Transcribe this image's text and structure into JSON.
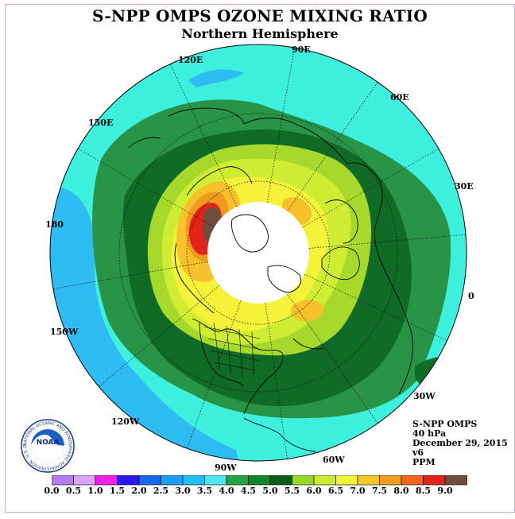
{
  "title": "S-NPP OMPS OZONE MIXING RATIO",
  "subtitle": "Northern Hemisphere",
  "longitudes": [
    "90E",
    "60E",
    "30E",
    "0",
    "30W",
    "60W",
    "90W",
    "120W",
    "150W",
    "180",
    "150E",
    "120E"
  ],
  "info": {
    "instrument": "S-NPP OMPS",
    "level": "40 hPa",
    "date": "December 29, 2015",
    "version": "v6",
    "units": "PPM"
  },
  "logo_text": "NOAA",
  "logo_ring_text": "NATIONAL OCEANIC AND ATMOSPHERIC ADMINISTRATION · U.S. DEPARTMENT OF COMMERCE",
  "colorbar": {
    "labels": [
      "0.0",
      "0.5",
      "1.0",
      "1.5",
      "2.0",
      "2.5",
      "3.0",
      "3.5",
      "4.0",
      "4.5",
      "5.0",
      "5.5",
      "6.0",
      "6.5",
      "7.0",
      "7.5",
      "8.0",
      "8.5",
      "9.0"
    ],
    "colors": [
      "#b57bf2",
      "#d9a5f5",
      "#f21ee6",
      "#2b17ee",
      "#1569f0",
      "#1d9ff4",
      "#22bff5",
      "#4fe5f2",
      "#26a345",
      "#11852c",
      "#0b5c1f",
      "#96d82a",
      "#c9ec33",
      "#f3f23a",
      "#f6c928",
      "#f29a1f",
      "#f0671b",
      "#e3231b",
      "#6e4d3c"
    ]
  },
  "map_colors": {
    "ocean_ring": "#3ef0de",
    "light_blue": "#2fbcf3",
    "green": "#279447",
    "dark_green": "#0f6b26",
    "lime": "#a6d92c",
    "yellow_green": "#cfee33",
    "yellow": "#f5f23a",
    "orange": "#f6c12a",
    "red": "#e3231b",
    "brown": "#6e4d3c",
    "no_data": "#ffffff"
  }
}
